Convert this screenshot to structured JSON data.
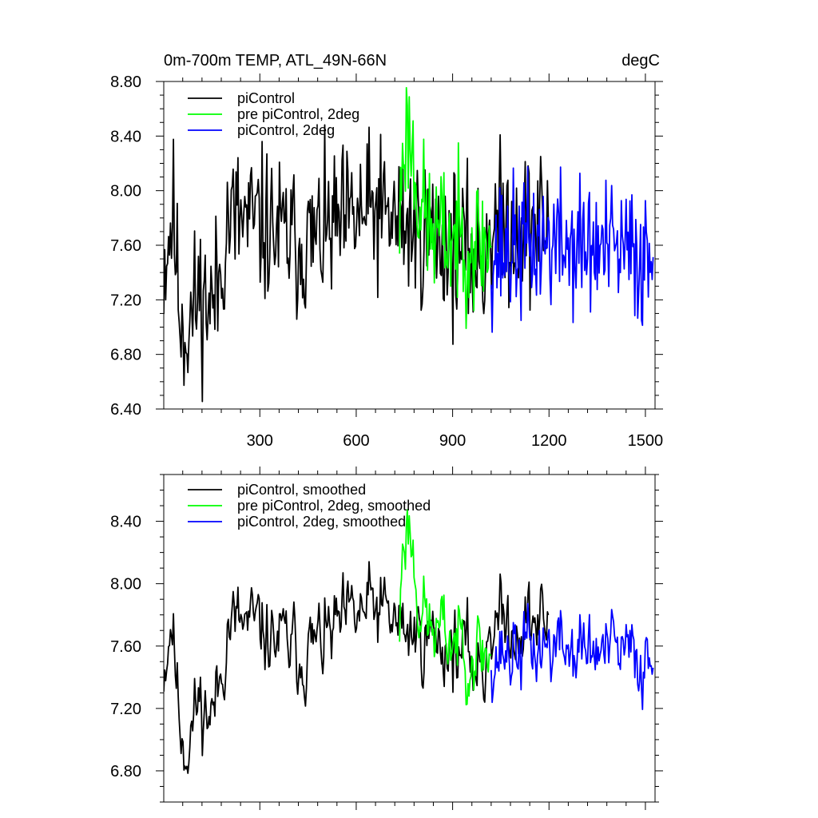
{
  "chart_data": [
    {
      "type": "line",
      "title_left": "0m-700m TEMP, ATL_49N-66N",
      "title_right": "degC",
      "xlim": [
        1,
        1530
      ],
      "ylim": [
        6.4,
        8.8
      ],
      "xticks": [
        300,
        600,
        900,
        1200,
        1500
      ],
      "xtick_labels": [
        "300",
        "600",
        "900",
        "1200",
        "1500"
      ],
      "yticks": [
        6.4,
        6.8,
        7.2,
        7.6,
        8.0,
        8.4,
        8.8
      ],
      "ytick_labels": [
        "6.40",
        "6.80",
        "7.20",
        "7.60",
        "8.00",
        "8.40",
        "8.80"
      ],
      "legend_position": "top-left",
      "series": [
        {
          "name": "piControl",
          "color": "#000000",
          "x_start": 1,
          "x_end": 1200,
          "mean": 7.62,
          "amplitude": 0.28,
          "seed": 11,
          "anchors": [
            [
              1,
              7.45
            ],
            [
              30,
              7.85
            ],
            [
              50,
              7.15
            ],
            [
              70,
              6.95
            ],
            [
              110,
              7.25
            ],
            [
              150,
              7.15
            ],
            [
              175,
              7.35
            ],
            [
              200,
              7.8
            ],
            [
              300,
              7.75
            ],
            [
              430,
              7.6
            ],
            [
              650,
              7.85
            ],
            [
              760,
              7.75
            ],
            [
              900,
              7.6
            ],
            [
              1000,
              7.45
            ],
            [
              1010,
              7.75
            ],
            [
              1200,
              7.75
            ]
          ]
        },
        {
          "name": "pre piControl, 2deg",
          "color": "#00ff00",
          "x_start": 735,
          "x_end": 1020,
          "mean": 7.7,
          "amplitude": 0.25,
          "seed": 23,
          "anchors": [
            [
              735,
              7.7
            ],
            [
              745,
              8.35
            ],
            [
              765,
              8.45
            ],
            [
              790,
              8.0
            ],
            [
              830,
              7.7
            ],
            [
              1020,
              7.6
            ]
          ]
        },
        {
          "name": "piControl, 2deg",
          "color": "#0000ff",
          "x_start": 1020,
          "x_end": 1525,
          "mean": 7.58,
          "amplitude": 0.26,
          "seed": 37,
          "anchors": [
            [
              1020,
              7.55
            ],
            [
              1200,
              7.62
            ],
            [
              1400,
              7.55
            ],
            [
              1525,
              7.5
            ]
          ]
        }
      ]
    },
    {
      "type": "line",
      "xlim": [
        1,
        1530
      ],
      "ylim": [
        6.6,
        8.7
      ],
      "xticks": [
        300,
        600,
        900,
        1200,
        1500
      ],
      "yticks": [
        6.8,
        7.2,
        7.6,
        8.0,
        8.4
      ],
      "ytick_labels": [
        "6.80",
        "7.20",
        "7.60",
        "8.00",
        "8.40"
      ],
      "legend_position": "top-left",
      "series": [
        {
          "name": "piControl, smoothed",
          "color": "#000000",
          "x_start": 1,
          "x_end": 1200,
          "mean": 7.62,
          "amplitude": 0.2,
          "seed": 11,
          "anchors": [
            [
              1,
              7.45
            ],
            [
              25,
              7.8
            ],
            [
              50,
              7.15
            ],
            [
              70,
              6.95
            ],
            [
              110,
              7.25
            ],
            [
              150,
              7.15
            ],
            [
              175,
              7.35
            ],
            [
              200,
              7.75
            ],
            [
              300,
              7.7
            ],
            [
              430,
              7.55
            ],
            [
              650,
              7.85
            ],
            [
              760,
              7.7
            ],
            [
              900,
              7.6
            ],
            [
              1000,
              7.45
            ],
            [
              1010,
              7.75
            ],
            [
              1200,
              7.75
            ]
          ]
        },
        {
          "name": "pre piControl, 2deg, smoothed",
          "color": "#00ff00",
          "x_start": 735,
          "x_end": 1020,
          "mean": 7.7,
          "amplitude": 0.2,
          "seed": 23,
          "anchors": [
            [
              735,
              7.7
            ],
            [
              745,
              8.3
            ],
            [
              765,
              8.4
            ],
            [
              790,
              7.95
            ],
            [
              830,
              7.7
            ],
            [
              1020,
              7.55
            ]
          ]
        },
        {
          "name": "piControl, 2deg, smoothed",
          "color": "#0000ff",
          "x_start": 1020,
          "x_end": 1525,
          "mean": 7.58,
          "amplitude": 0.2,
          "seed": 37,
          "anchors": [
            [
              1020,
              7.55
            ],
            [
              1200,
              7.6
            ],
            [
              1400,
              7.55
            ],
            [
              1525,
              7.5
            ]
          ]
        }
      ]
    }
  ]
}
